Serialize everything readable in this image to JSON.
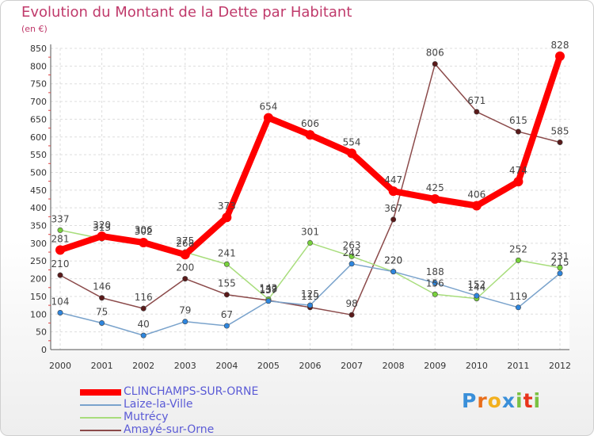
{
  "chart_data": {
    "type": "line",
    "title": "Evolution du Montant de la Dette par Habitant",
    "unit_label": "(en €)",
    "x": [
      "2000",
      "2001",
      "2002",
      "2003",
      "2004",
      "2005",
      "2006",
      "2007",
      "2008",
      "2009",
      "2010",
      "2011",
      "2012"
    ],
    "y_ticks": [
      0,
      50,
      100,
      150,
      200,
      250,
      300,
      350,
      400,
      450,
      500,
      550,
      600,
      650,
      700,
      750,
      800,
      850
    ],
    "ylim": [
      0,
      850
    ],
    "grid": true,
    "legend_position": "bottom-left",
    "series": [
      {
        "name": "CLINCHAMPS-SUR-ORNE",
        "color": "#ff0000",
        "marker": "#ff0000",
        "values": [
          281,
          320,
          302,
          268,
          373,
          654,
          606,
          554,
          447,
          425,
          406,
          474,
          828
        ]
      },
      {
        "name": "Laize-la-Ville",
        "color": "#7aa3cc",
        "marker": "#2e86de",
        "values": [
          104,
          75,
          40,
          79,
          67,
          137,
          125,
          242,
          220,
          188,
          152,
          119,
          215
        ]
      },
      {
        "name": "Mutrécy",
        "color": "#a8dd7c",
        "marker": "#78d23c",
        "values": [
          337,
          313,
          306,
          275,
          241,
          142,
          301,
          263,
          220,
          156,
          144,
          252,
          231
        ]
      },
      {
        "name": "Amayé-sur-Orne",
        "color": "#8b4a4a",
        "marker": "#5a1a1a",
        "values": [
          210,
          146,
          116,
          200,
          155,
          139,
          119,
          98,
          367,
          806,
          671,
          615,
          585
        ]
      }
    ]
  },
  "logo": {
    "letters": [
      "P",
      "r",
      "o",
      "x",
      "i",
      "t",
      "i"
    ],
    "colors": [
      "#3a8fd9",
      "#e86e1b",
      "#f2b01e",
      "#3a8fd9",
      "#7ac143",
      "#e8331b",
      "#7ac143"
    ]
  }
}
